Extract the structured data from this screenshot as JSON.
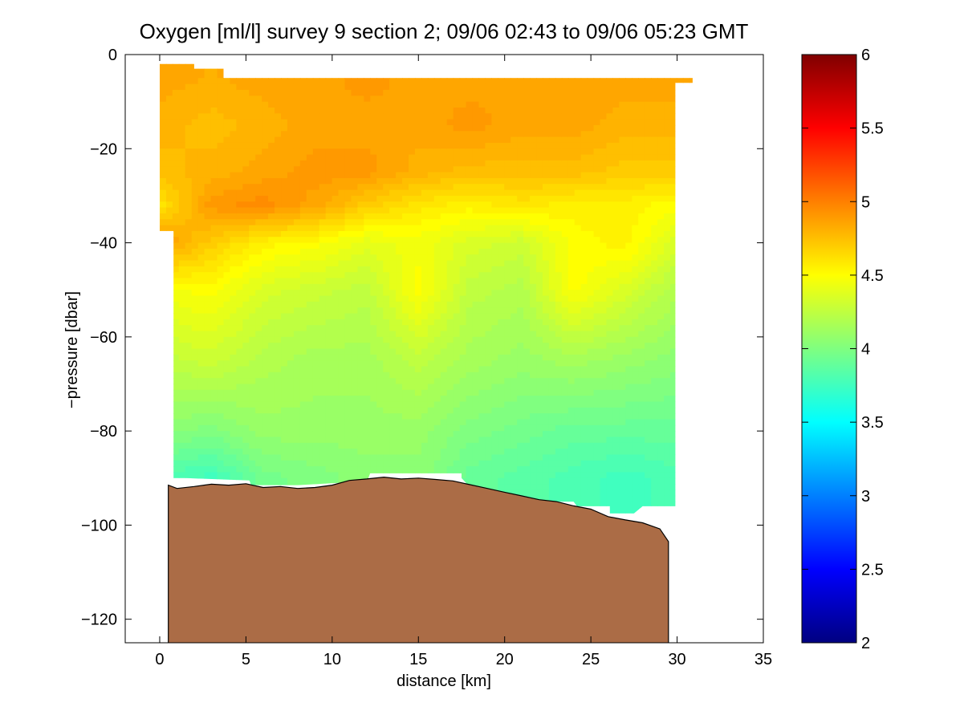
{
  "chart_data": {
    "type": "heatmap",
    "title": "Oxygen [ml/l] survey 9 section 2; 09/06 02:43 to 09/06 05:23 GMT",
    "xlabel": "distance [km]",
    "ylabel": "−pressure [dbar]",
    "xlim": [
      -2,
      35
    ],
    "ylim": [
      -125,
      0
    ],
    "x_ticks": [
      0,
      5,
      10,
      15,
      20,
      25,
      30,
      35
    ],
    "x_tick_labels": [
      "0",
      "5",
      "10",
      "15",
      "20",
      "25",
      "30",
      "35"
    ],
    "y_ticks": [
      0,
      -20,
      -40,
      -60,
      -80,
      -100,
      -120
    ],
    "y_tick_labels": [
      "0",
      "−20",
      "−40",
      "−60",
      "−80",
      "−100",
      "−120"
    ],
    "colorbar": {
      "min": 2,
      "max": 6,
      "ticks": [
        2,
        2.5,
        3,
        3.5,
        4,
        4.5,
        5,
        5.5,
        6
      ],
      "tick_labels": [
        "2",
        "2.5",
        "3",
        "3.5",
        "4",
        "4.5",
        "5",
        "5.5",
        "6"
      ],
      "colormap": "jet"
    },
    "depth_levels": [
      -5,
      -15,
      -25,
      -32,
      -40,
      -50,
      -65,
      -80,
      -90
    ],
    "stations_km": [
      0,
      3,
      6,
      9,
      12,
      15,
      18,
      21,
      24,
      27,
      29.9
    ],
    "oxygen_ml_l": [
      [
        4.85,
        4.82,
        4.85,
        4.85,
        4.9,
        4.85,
        4.85,
        4.85,
        4.85,
        4.85,
        4.85
      ],
      [
        4.8,
        4.75,
        4.8,
        4.85,
        4.85,
        4.85,
        4.9,
        4.85,
        4.85,
        4.8,
        4.8
      ],
      [
        4.75,
        4.8,
        4.85,
        4.9,
        4.9,
        4.8,
        4.75,
        4.75,
        4.75,
        4.7,
        4.7
      ],
      [
        4.6,
        4.9,
        4.95,
        4.85,
        4.7,
        4.6,
        4.55,
        4.6,
        4.55,
        4.55,
        4.5
      ],
      [
        4.9,
        4.7,
        4.55,
        4.5,
        4.4,
        4.45,
        4.35,
        4.3,
        4.5,
        4.55,
        4.35
      ],
      [
        4.45,
        4.5,
        4.35,
        4.3,
        4.25,
        4.5,
        4.25,
        4.2,
        4.5,
        4.35,
        4.2
      ],
      [
        4.25,
        4.3,
        4.2,
        4.15,
        4.15,
        4.25,
        4.15,
        4.1,
        4.15,
        4.1,
        4.05
      ],
      [
        4.05,
        4.0,
        4.1,
        4.1,
        4.1,
        4.1,
        4.0,
        3.95,
        3.9,
        3.9,
        3.9
      ],
      [
        3.8,
        3.75,
        3.95,
        4.0,
        4.05,
        4.05,
        3.9,
        3.85,
        3.8,
        3.75,
        3.8
      ]
    ],
    "data_top_boundary": [
      [
        0,
        -2
      ],
      [
        2,
        -2
      ],
      [
        2,
        -3
      ],
      [
        3.7,
        -3
      ],
      [
        3.7,
        -5
      ],
      [
        30,
        -5
      ],
      [
        30.9,
        -5
      ],
      [
        30.9,
        -6
      ],
      [
        30,
        -6
      ],
      [
        29.9,
        -6
      ]
    ],
    "data_bottom_boundary": [
      [
        29.9,
        -96
      ],
      [
        29,
        -96
      ],
      [
        28,
        -96
      ],
      [
        27.5,
        -97.5
      ],
      [
        26.1,
        -97.5
      ],
      [
        26.1,
        -96
      ],
      [
        24.2,
        -96
      ],
      [
        24,
        -95
      ],
      [
        20.3,
        -95
      ],
      [
        20,
        -93
      ],
      [
        18.2,
        -93
      ],
      [
        18,
        -92
      ],
      [
        17.5,
        -90
      ],
      [
        17.5,
        -89
      ],
      [
        12.2,
        -89
      ],
      [
        12,
        -91
      ],
      [
        10.5,
        -91
      ],
      [
        8,
        -91.5
      ],
      [
        5.3,
        -91.5
      ],
      [
        5.2,
        -90.5
      ],
      [
        1.5,
        -90
      ],
      [
        0.8,
        -90
      ],
      [
        0.8,
        -40
      ],
      [
        0.8,
        -37.5
      ],
      [
        0,
        -37.5
      ]
    ],
    "seafloor_profile": [
      [
        0.5,
        -91.5
      ],
      [
        1.0,
        -92.2
      ],
      [
        2.0,
        -91.8
      ],
      [
        3.0,
        -91.3
      ],
      [
        4.0,
        -91.5
      ],
      [
        5.0,
        -91.2
      ],
      [
        6.0,
        -92.0
      ],
      [
        7.0,
        -91.8
      ],
      [
        8.0,
        -92.2
      ],
      [
        9.0,
        -92.0
      ],
      [
        10.0,
        -91.5
      ],
      [
        11.0,
        -90.5
      ],
      [
        12.0,
        -90.2
      ],
      [
        13.0,
        -89.8
      ],
      [
        14.0,
        -90.2
      ],
      [
        15.0,
        -90.0
      ],
      [
        16.0,
        -90.3
      ],
      [
        17.0,
        -90.6
      ],
      [
        18.0,
        -91.4
      ],
      [
        19.0,
        -92.2
      ],
      [
        20.0,
        -93.0
      ],
      [
        21.0,
        -93.8
      ],
      [
        22.0,
        -94.6
      ],
      [
        23.0,
        -95.0
      ],
      [
        24.0,
        -95.9
      ],
      [
        25.0,
        -96.6
      ],
      [
        26.0,
        -98.2
      ],
      [
        27.0,
        -98.9
      ],
      [
        28.0,
        -99.5
      ],
      [
        29.0,
        -100.8
      ],
      [
        29.5,
        -103.5
      ]
    ],
    "seafloor_color": "#ab6c46"
  }
}
